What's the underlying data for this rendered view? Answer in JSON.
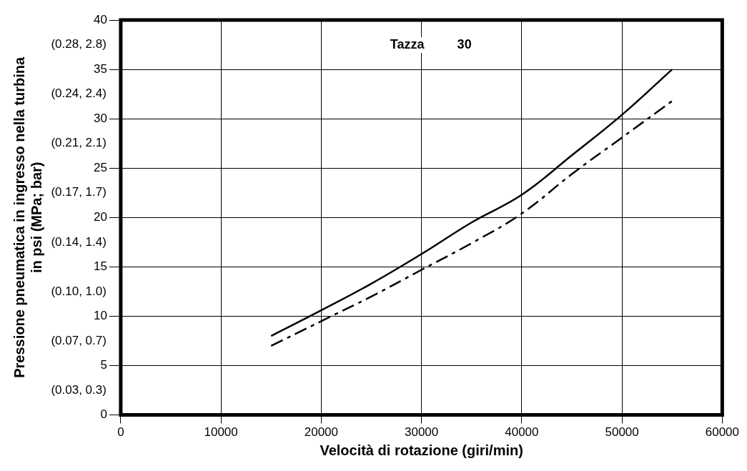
{
  "chart_data": {
    "type": "line",
    "xlabel": "Velocità di rotazione (giri/min)",
    "ylabel": "Pressione pneumatica in ingresso nella turbina\nin psi (MPa; bar)",
    "x": [
      15000,
      20000,
      25000,
      30000,
      35000,
      40000,
      45000,
      50000,
      55000
    ],
    "series": [
      {
        "color": "#000000",
        "line_style": "solid",
        "values": [
          8.0,
          10.6,
          13.3,
          16.3,
          19.5,
          22.3,
          26.3,
          30.4,
          35
        ]
      },
      {
        "color": "#000000",
        "line_style": "dashed",
        "values": [
          7.0,
          9.5,
          12.0,
          14.7,
          17.4,
          20.4,
          24.4,
          28.1,
          31.8
        ]
      }
    ],
    "xlim": [
      0,
      60000
    ],
    "xticks": [
      0,
      10000,
      20000,
      30000,
      40000,
      50000,
      60000
    ],
    "ylim": [
      0,
      40
    ],
    "yticks": [
      0,
      5,
      10,
      15,
      20,
      25,
      30,
      35,
      40
    ],
    "grid": true,
    "legend": false,
    "marker": "none",
    "annotations": [
      "Tazza",
      "30",
      "(0.28, 2.8)",
      "(0.24, 2.4)",
      "(0.21, 2.1)",
      "(0.17, 1.7)",
      "(0.14, 1.4)",
      "(0.10, 1.0)",
      "(0.07, 0.7)",
      "(0.03, 0.3)"
    ]
  }
}
